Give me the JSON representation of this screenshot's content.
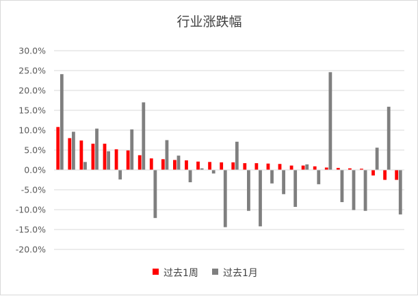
{
  "chart_data": {
    "type": "bar",
    "title": "行业涨跌幅",
    "xlabel": "",
    "ylabel": "",
    "ylim": [
      -0.2,
      0.3
    ],
    "yticks": [
      0.3,
      0.25,
      0.2,
      0.15,
      0.1,
      0.05,
      0.0,
      -0.05,
      -0.1,
      -0.15,
      -0.2
    ],
    "ytick_labels": [
      "30.0%",
      "25.0%",
      "20.0%",
      "15.0%",
      "10.0%",
      "5.0%",
      "0.0%",
      "-5.0%",
      "-10.0%",
      "-15.0%",
      "-20.0%"
    ],
    "grid": true,
    "legend_position": "bottom",
    "category_count": 30,
    "series": [
      {
        "name": "过去1周",
        "color": "#ff0000",
        "values": [
          0.108,
          0.08,
          0.074,
          0.066,
          0.066,
          0.052,
          0.049,
          0.037,
          0.029,
          0.027,
          0.025,
          0.024,
          0.021,
          0.02,
          0.019,
          0.019,
          0.017,
          0.017,
          0.016,
          0.015,
          0.011,
          0.011,
          0.009,
          0.006,
          0.005,
          0.004,
          0.003,
          -0.014,
          -0.025,
          -0.025
        ]
      },
      {
        "name": "过去1月",
        "color": "#7f7f7f",
        "values": [
          0.241,
          0.096,
          0.02,
          0.104,
          0.047,
          -0.024,
          0.102,
          0.17,
          -0.121,
          0.075,
          0.036,
          -0.031,
          0.004,
          -0.009,
          -0.144,
          0.071,
          -0.103,
          -0.142,
          -0.034,
          -0.061,
          -0.093,
          0.014,
          -0.036,
          0.246,
          -0.081,
          -0.101,
          -0.103,
          0.056,
          0.159,
          -0.112
        ]
      }
    ]
  }
}
